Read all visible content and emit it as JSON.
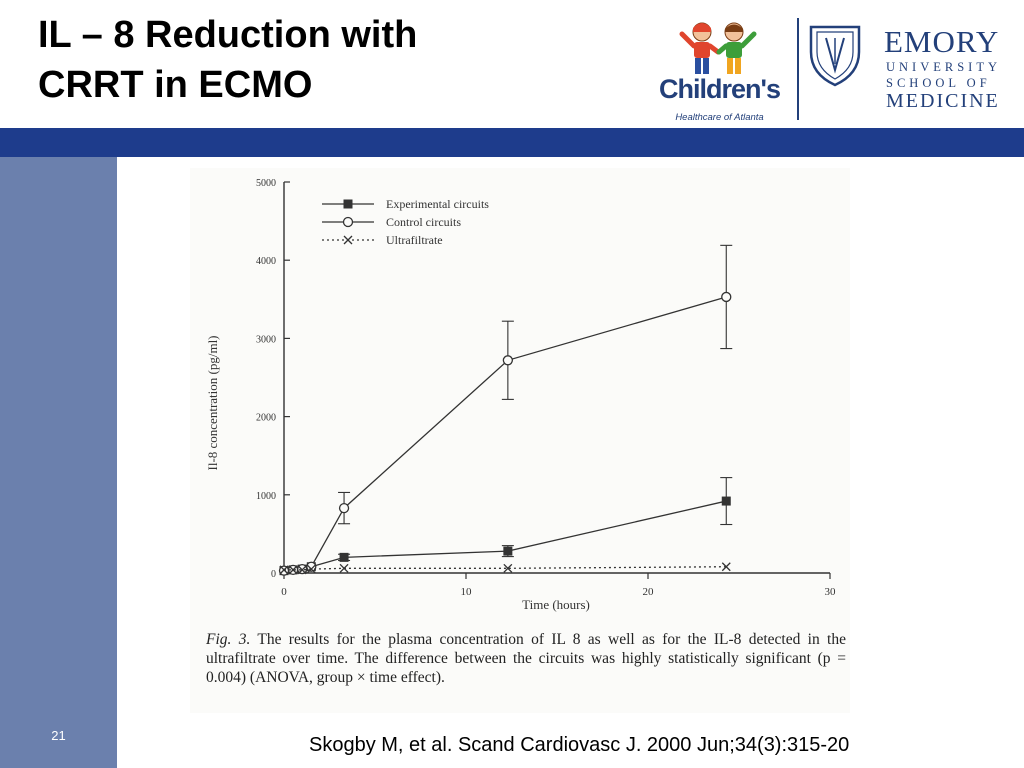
{
  "slide": {
    "title_line1": "IL – 8 Reduction with",
    "title_line2": "CRRT in ECMO",
    "number": "21",
    "citation": "Skogby M, et al. Scand Cardiovasc J. 2000 Jun;34(3):315-20",
    "banner_color": "#1e3c8c",
    "sidebar_color": "#6b80ad"
  },
  "logos": {
    "childrens": {
      "name": "Children's",
      "subtitle": "Healthcare of Atlanta",
      "icon": "two-kids-icon"
    },
    "emory": {
      "name": "EMORY",
      "line1": "UNIVERSITY",
      "line2": "SCHOOL OF",
      "line3": "MEDICINE",
      "icon": "emory-shield-icon"
    }
  },
  "chart_data": {
    "type": "line",
    "xlabel": "Time (hours)",
    "ylabel": "Il-8 concentration (pg/ml)",
    "xlim": [
      0,
      30
    ],
    "ylim": [
      0,
      5000
    ],
    "x_ticks": [
      0,
      10,
      20,
      30
    ],
    "y_ticks": [
      0,
      1000,
      2000,
      3000,
      4000,
      5000
    ],
    "legend_position": "top-left",
    "grid": false,
    "series": [
      {
        "name": "Experimental circuits",
        "marker": "filled-square",
        "line": "solid",
        "x": [
          0,
          0.5,
          1,
          1.5,
          3.3,
          12.3,
          24.3
        ],
        "y": [
          30,
          40,
          50,
          80,
          200,
          280,
          920
        ],
        "err": [
          0,
          0,
          0,
          0,
          40,
          70,
          300
        ]
      },
      {
        "name": "Control circuits",
        "marker": "open-circle",
        "line": "solid",
        "x": [
          0,
          0.5,
          1,
          1.5,
          3.3,
          12.3,
          24.3
        ],
        "y": [
          30,
          40,
          50,
          80,
          830,
          2720,
          3530
        ],
        "err": [
          0,
          0,
          0,
          0,
          200,
          500,
          660
        ]
      },
      {
        "name": "Ultrafiltrate",
        "marker": "cross",
        "line": "dotted",
        "x": [
          0,
          0.5,
          1,
          1.5,
          3.3,
          12.3,
          24.3
        ],
        "y": [
          40,
          40,
          40,
          50,
          60,
          60,
          80
        ],
        "err": [
          0,
          0,
          0,
          0,
          0,
          0,
          0
        ]
      }
    ],
    "caption_lead": "Fig. 3.",
    "caption": "The results for the plasma concentration of IL 8 as well as for the IL-8 detected in the ultrafiltrate over time. The difference between the circuits was highly statistically significant (p = 0.004) (ANOVA, group × time effect)."
  }
}
